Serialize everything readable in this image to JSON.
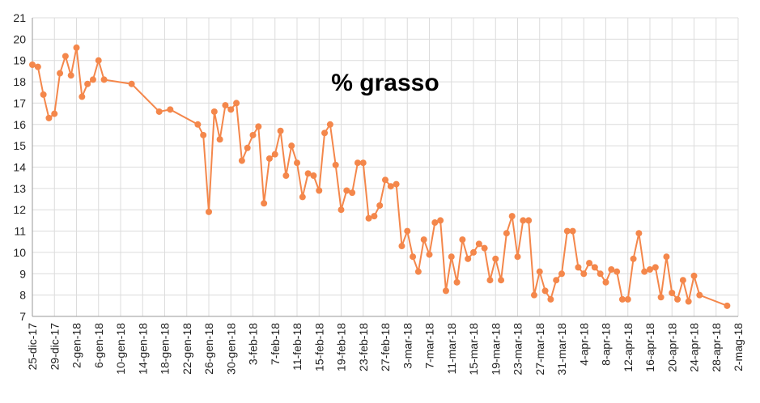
{
  "chart_data": {
    "type": "line",
    "title": "% grasso",
    "x": [
      "2017-12-25",
      "2017-12-26",
      "2017-12-27",
      "2017-12-28",
      "2017-12-29",
      "2017-12-30",
      "2017-12-31",
      "2018-01-01",
      "2018-01-02",
      "2018-01-03",
      "2018-01-04",
      "2018-01-05",
      "2018-01-06",
      "2018-01-07",
      "2018-01-12",
      "2018-01-17",
      "2018-01-19",
      "2018-01-24",
      "2018-01-25",
      "2018-01-26",
      "2018-01-27",
      "2018-01-28",
      "2018-01-29",
      "2018-01-30",
      "2018-01-31",
      "2018-02-01",
      "2018-02-02",
      "2018-02-03",
      "2018-02-04",
      "2018-02-05",
      "2018-02-06",
      "2018-02-07",
      "2018-02-08",
      "2018-02-09",
      "2018-02-10",
      "2018-02-11",
      "2018-02-12",
      "2018-02-13",
      "2018-02-14",
      "2018-02-15",
      "2018-02-16",
      "2018-02-17",
      "2018-02-18",
      "2018-02-19",
      "2018-02-20",
      "2018-02-21",
      "2018-02-22",
      "2018-02-23",
      "2018-02-24",
      "2018-02-25",
      "2018-02-26",
      "2018-02-27",
      "2018-02-28",
      "2018-03-01",
      "2018-03-02",
      "2018-03-03",
      "2018-03-04",
      "2018-03-05",
      "2018-03-06",
      "2018-03-07",
      "2018-03-08",
      "2018-03-09",
      "2018-03-10",
      "2018-03-11",
      "2018-03-12",
      "2018-03-13",
      "2018-03-14",
      "2018-03-15",
      "2018-03-16",
      "2018-03-17",
      "2018-03-18",
      "2018-03-19",
      "2018-03-20",
      "2018-03-21",
      "2018-03-22",
      "2018-03-23",
      "2018-03-24",
      "2018-03-25",
      "2018-03-26",
      "2018-03-27",
      "2018-03-28",
      "2018-03-29",
      "2018-03-30",
      "2018-03-31",
      "2018-04-01",
      "2018-04-02",
      "2018-04-03",
      "2018-04-04",
      "2018-04-05",
      "2018-04-06",
      "2018-04-07",
      "2018-04-08",
      "2018-04-09",
      "2018-04-10",
      "2018-04-11",
      "2018-04-12",
      "2018-04-13",
      "2018-04-14",
      "2018-04-15",
      "2018-04-16",
      "2018-04-17",
      "2018-04-18",
      "2018-04-19",
      "2018-04-20",
      "2018-04-21",
      "2018-04-22",
      "2018-04-23",
      "2018-04-24",
      "2018-04-25",
      "2018-04-30"
    ],
    "series": [
      {
        "color": "#f4874b",
        "values": [
          18.8,
          18.7,
          17.4,
          16.3,
          16.5,
          18.4,
          19.2,
          18.3,
          19.6,
          17.3,
          17.9,
          18.1,
          19.0,
          18.1,
          17.9,
          16.6,
          16.7,
          16.0,
          15.5,
          11.9,
          16.6,
          15.3,
          16.9,
          16.7,
          17.0,
          14.3,
          14.9,
          15.5,
          15.9,
          12.3,
          14.4,
          14.6,
          15.7,
          13.6,
          15.0,
          14.2,
          12.6,
          13.7,
          13.6,
          12.9,
          15.6,
          16.0,
          14.1,
          12.0,
          12.9,
          12.8,
          14.2,
          14.2,
          11.6,
          11.7,
          12.2,
          13.4,
          13.1,
          13.2,
          10.3,
          11.0,
          9.8,
          9.1,
          10.6,
          9.9,
          11.4,
          11.5,
          8.2,
          9.8,
          8.6,
          10.6,
          9.7,
          10.0,
          10.4,
          10.2,
          8.7,
          9.7,
          8.7,
          10.9,
          11.7,
          9.8,
          11.5,
          11.5,
          8.0,
          9.1,
          8.2,
          7.8,
          8.7,
          9.0,
          11.0,
          11.0,
          9.3,
          9.0,
          9.5,
          9.3,
          9.0,
          8.6,
          9.2,
          9.1,
          7.8,
          7.8,
          9.7,
          10.9,
          9.1,
          9.2,
          9.3,
          7.9,
          9.8,
          8.1,
          7.8,
          8.7,
          7.7,
          8.9,
          8.0,
          7.5
        ]
      }
    ],
    "xlim": [
      "2017-12-25",
      "2018-05-02"
    ],
    "xticks": [
      {
        "value": "2017-12-25",
        "label": "25-dic-17"
      },
      {
        "value": "2017-12-29",
        "label": "29-dic-17"
      },
      {
        "value": "2018-01-02",
        "label": "2-gen-18"
      },
      {
        "value": "2018-01-06",
        "label": "6-gen-18"
      },
      {
        "value": "2018-01-10",
        "label": "10-gen-18"
      },
      {
        "value": "2018-01-14",
        "label": "14-gen-18"
      },
      {
        "value": "2018-01-18",
        "label": "18-gen-18"
      },
      {
        "value": "2018-01-22",
        "label": "22-gen-18"
      },
      {
        "value": "2018-01-26",
        "label": "26-gen-18"
      },
      {
        "value": "2018-01-30",
        "label": "30-gen-18"
      },
      {
        "value": "2018-02-03",
        "label": "3-feb-18"
      },
      {
        "value": "2018-02-07",
        "label": "7-feb-18"
      },
      {
        "value": "2018-02-11",
        "label": "11-feb-18"
      },
      {
        "value": "2018-02-15",
        "label": "15-feb-18"
      },
      {
        "value": "2018-02-19",
        "label": "19-feb-18"
      },
      {
        "value": "2018-02-23",
        "label": "23-feb-18"
      },
      {
        "value": "2018-02-27",
        "label": "27-feb-18"
      },
      {
        "value": "2018-03-03",
        "label": "3-mar-18"
      },
      {
        "value": "2018-03-07",
        "label": "7-mar-18"
      },
      {
        "value": "2018-03-11",
        "label": "11-mar-18"
      },
      {
        "value": "2018-03-15",
        "label": "15-mar-18"
      },
      {
        "value": "2018-03-19",
        "label": "19-mar-18"
      },
      {
        "value": "2018-03-23",
        "label": "23-mar-18"
      },
      {
        "value": "2018-03-27",
        "label": "27-mar-18"
      },
      {
        "value": "2018-03-31",
        "label": "31-mar-18"
      },
      {
        "value": "2018-04-04",
        "label": "4-apr-18"
      },
      {
        "value": "2018-04-08",
        "label": "8-apr-18"
      },
      {
        "value": "2018-04-12",
        "label": "12-apr-18"
      },
      {
        "value": "2018-04-16",
        "label": "16-apr-18"
      },
      {
        "value": "2018-04-20",
        "label": "20-apr-18"
      },
      {
        "value": "2018-04-24",
        "label": "24-apr-18"
      },
      {
        "value": "2018-04-28",
        "label": "28-apr-18"
      },
      {
        "value": "2018-05-02",
        "label": "2-mag-18"
      }
    ],
    "ylim": [
      7,
      21
    ],
    "yticks": [
      7,
      8,
      9,
      10,
      11,
      12,
      13,
      14,
      15,
      16,
      17,
      18,
      19,
      20,
      21
    ],
    "grid": true
  }
}
